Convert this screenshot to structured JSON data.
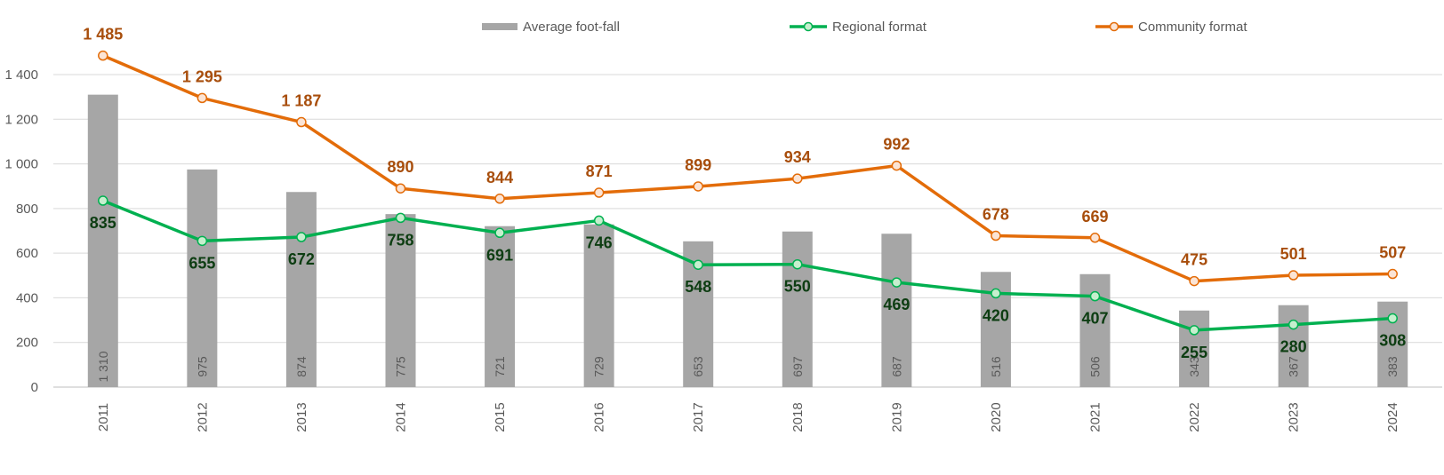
{
  "chart_data": {
    "type": "bar+line",
    "title": "",
    "xlabel": "",
    "ylabel": "",
    "ylim": [
      0,
      1400
    ],
    "yticks": [
      0,
      200,
      400,
      600,
      800,
      1000,
      1200,
      1400
    ],
    "ytick_labels": [
      "0",
      "200",
      "400",
      "600",
      "800",
      "1 000",
      "1 200",
      "1 400"
    ],
    "grid": true,
    "legend_position": "top",
    "categories": [
      "2011",
      "2012",
      "2013",
      "2014",
      "2015",
      "2016",
      "2017",
      "2018",
      "2019",
      "2020",
      "2021",
      "2022",
      "2023",
      "2024"
    ],
    "series": [
      {
        "name": "Average foot-fall",
        "type": "bar",
        "color": "#a6a6a6",
        "values": [
          1310,
          975,
          874,
          775,
          721,
          729,
          653,
          697,
          687,
          516,
          506,
          343,
          367,
          383
        ],
        "labels": [
          "1 310",
          "975",
          "874",
          "775",
          "721",
          "729",
          "653",
          "697",
          "687",
          "516",
          "506",
          "343",
          "367",
          "383"
        ]
      },
      {
        "name": "Regional format",
        "type": "line",
        "color": "#00b050",
        "marker_fill": "#c6efce",
        "label_color": "#0d3d12",
        "values": [
          835,
          655,
          672,
          758,
          691,
          746,
          548,
          550,
          469,
          420,
          407,
          255,
          280,
          308
        ],
        "labels": [
          "835",
          "655",
          "672",
          "758",
          "691",
          "746",
          "548",
          "550",
          "469",
          "420",
          "407",
          "255",
          "280",
          "308"
        ]
      },
      {
        "name": "Community format",
        "type": "line",
        "color": "#e36c09",
        "marker_fill": "#fbe4d5",
        "label_color": "#a84e0c",
        "values": [
          1485,
          1295,
          1187,
          890,
          844,
          871,
          899,
          934,
          992,
          678,
          669,
          475,
          501,
          507
        ],
        "labels": [
          "1 485",
          "1 295",
          "1 187",
          "890",
          "844",
          "871",
          "899",
          "934",
          "992",
          "678",
          "669",
          "475",
          "501",
          "507"
        ]
      }
    ]
  }
}
